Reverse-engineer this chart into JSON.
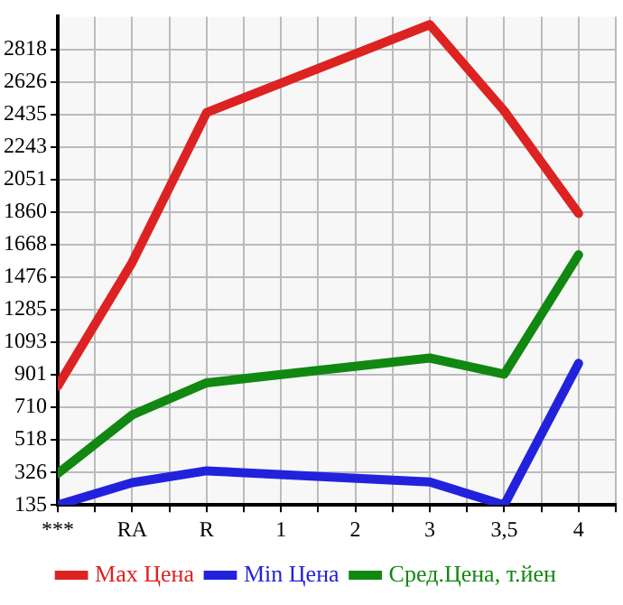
{
  "chart_data": {
    "type": "line",
    "categories": [
      "***",
      "RA",
      "R",
      "1",
      "2",
      "3",
      "3,5",
      "4"
    ],
    "series": [
      {
        "name": "Max Цена",
        "color": "#dd2222",
        "values": [
          835,
          1563,
          2445,
          null,
          null,
          2963,
          2455,
          1851
        ]
      },
      {
        "name": "Min Цена",
        "color": "#2222dd",
        "values": [
          135,
          266,
          336,
          null,
          null,
          270,
          135,
          969
        ]
      },
      {
        "name": "Сред.Цена, т.йен",
        "color": "#118811",
        "values": [
          320,
          665,
          854,
          null,
          null,
          1000,
          905,
          1608
        ]
      }
    ],
    "ylim": [
      135,
      3010
    ],
    "yticks": [
      135,
      326,
      518,
      710,
      901,
      1093,
      1285,
      1476,
      1668,
      1860,
      2051,
      2243,
      2435,
      2626,
      2818
    ],
    "grid": true,
    "legend": "bottom",
    "marker": "none",
    "line_style": "solid"
  }
}
